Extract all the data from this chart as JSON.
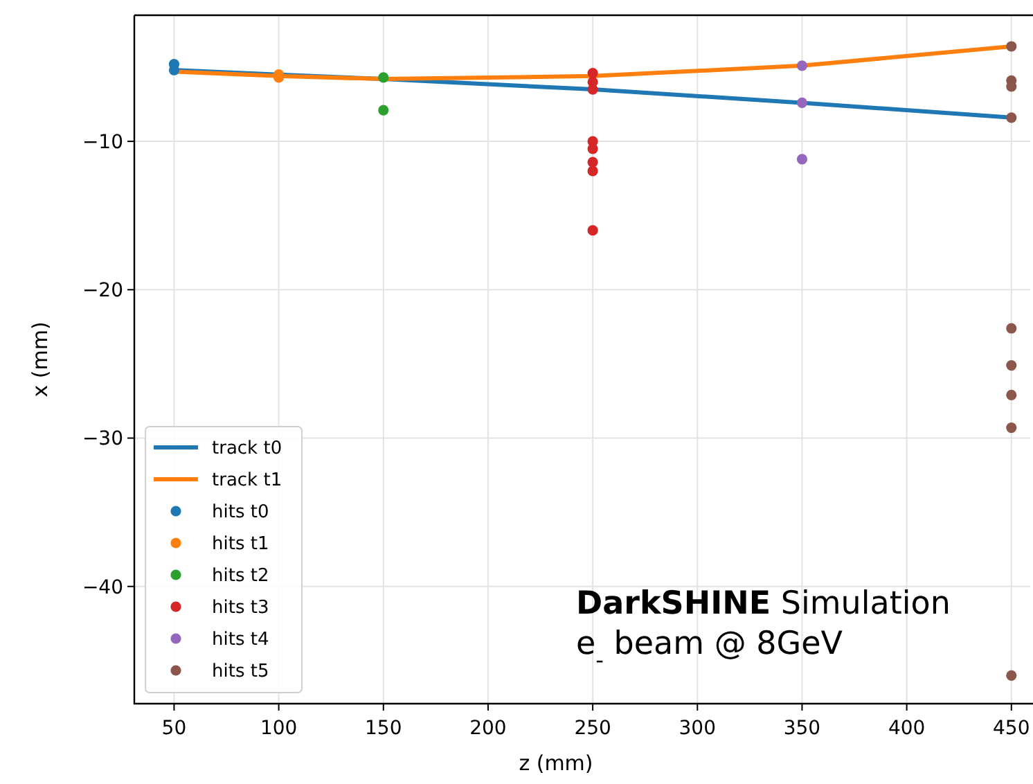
{
  "chart_data": {
    "type": "scatter",
    "xlabel": "z (mm)",
    "ylabel": "x (mm)",
    "xlim": [
      31,
      459
    ],
    "ylim": [
      -47.9,
      -1.5
    ],
    "xticks": [
      50,
      100,
      150,
      200,
      250,
      300,
      350,
      400,
      450
    ],
    "yticks": [
      {
        "value": -10,
        "label": "−10"
      },
      {
        "value": -20,
        "label": "−20"
      },
      {
        "value": -30,
        "label": "−30"
      },
      {
        "value": -40,
        "label": "−40"
      }
    ],
    "grid": true,
    "legend": "bottom left",
    "marker": "circle",
    "line_style": "solid",
    "annotations": [
      "DarkSHINE Simulation",
      "e$_{-}$ beam @ 8GeV"
    ],
    "series": [
      {
        "name": "track t0",
        "type": "line",
        "marker": "none",
        "color": "#1f77b4",
        "x": [
          50,
          100,
          150,
          250,
          350,
          450
        ],
        "values": [
          -5.2,
          -5.5,
          -5.8,
          -6.5,
          -7.4,
          -8.4
        ]
      },
      {
        "name": "track t1",
        "type": "line",
        "marker": "none",
        "color": "#ff7f0e",
        "x": [
          50,
          100,
          150,
          250,
          350,
          450
        ],
        "values": [
          -5.3,
          -5.6,
          -5.8,
          -5.6,
          -4.9,
          -3.6
        ]
      },
      {
        "name": "hits t0",
        "color": "#1f77b4",
        "x": [
          50,
          50
        ],
        "values": [
          -4.8,
          -5.2
        ]
      },
      {
        "name": "hits t1",
        "color": "#ff7f0e",
        "x": [
          100,
          100
        ],
        "values": [
          -5.5,
          -5.7
        ]
      },
      {
        "name": "hits t2",
        "color": "#2ca02c",
        "x": [
          150,
          150
        ],
        "values": [
          -5.7,
          -7.9
        ]
      },
      {
        "name": "hits t3",
        "color": "#d62728",
        "x": [
          250,
          250,
          250,
          250,
          250,
          250,
          250,
          250
        ],
        "values": [
          -5.4,
          -6.0,
          -6.5,
          -10.0,
          -10.5,
          -11.4,
          -12.0,
          -16.0
        ]
      },
      {
        "name": "hits t4",
        "color": "#9467bd",
        "x": [
          350,
          350,
          350
        ],
        "values": [
          -4.9,
          -7.4,
          -11.2
        ]
      },
      {
        "name": "hits t5",
        "color": "#8c564b",
        "x": [
          450,
          450,
          450,
          450,
          450,
          450,
          450,
          450,
          450
        ],
        "values": [
          -3.6,
          -5.9,
          -6.3,
          -8.4,
          -22.6,
          -25.1,
          -27.1,
          -29.3,
          -46.0
        ]
      }
    ]
  }
}
